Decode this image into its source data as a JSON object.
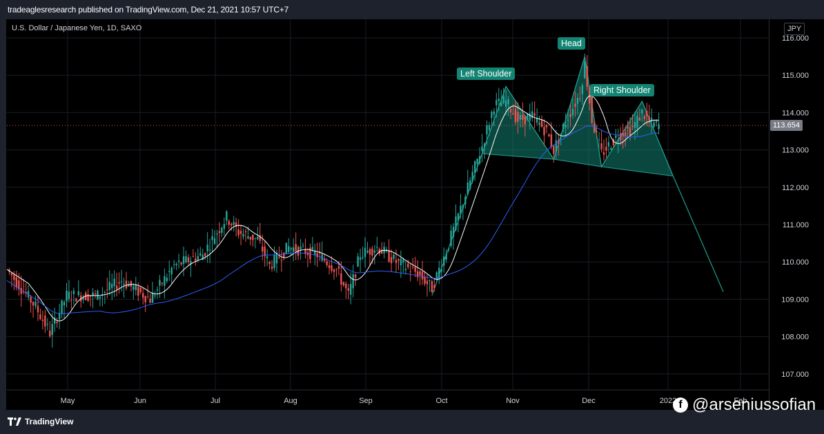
{
  "header": {
    "publisher": "tradeaglesresearch published on TradingView.com, Dec 21, 2021 10:57 UTC+7"
  },
  "symbol": {
    "title": "U.S. Dollar / Japanese Yen, 1D, SAXO",
    "currency": "JPY",
    "last_price": "113.654"
  },
  "pattern_labels": {
    "left_shoulder": "Left Shoulder",
    "head": "Head",
    "right_shoulder": "Right Shoulder"
  },
  "footer": {
    "brand": "TradingView",
    "social_handle": "@arseniussofian"
  },
  "colors": {
    "up": "#26a69a",
    "down": "#ef5350",
    "ma_fast": "#ffffff",
    "ma_slow": "#2962ff",
    "pattern_fill": "#138473",
    "background": "#000000"
  },
  "icons": {
    "social": "facebook-icon",
    "brand": "tradingview-logo-icon"
  },
  "chart_data": {
    "type": "candlestick",
    "title": "U.S. Dollar / Japanese Yen, 1D, SAXO",
    "y_ticks": [
      "107.000",
      "108.000",
      "109.000",
      "110.000",
      "111.000",
      "112.000",
      "113.000",
      "114.000",
      "115.000",
      "116.000"
    ],
    "x_ticks": [
      "May",
      "Jun",
      "Jul",
      "Aug",
      "Sep",
      "Oct",
      "Nov",
      "Dec",
      "2022",
      "Feb"
    ],
    "ylim": [
      106.6,
      116.4
    ],
    "last_price": 113.654,
    "grid": true,
    "pattern": {
      "type": "head_and_shoulders",
      "points": [
        {
          "label": "",
          "date_index": 178,
          "price": 109.1
        },
        {
          "label": "",
          "date_index": 199,
          "price": 112.9
        },
        {
          "label": "Left Shoulder",
          "date_index": 209,
          "price": 114.7
        },
        {
          "label": "",
          "date_index": 229,
          "price": 112.75
        },
        {
          "label": "Head",
          "date_index": 242,
          "price": 115.5
        },
        {
          "label": "",
          "date_index": 249,
          "price": 112.55
        },
        {
          "label": "Right Shoulder",
          "date_index": 266,
          "price": 114.3
        },
        {
          "label": "",
          "date_index": 279,
          "price": 112.3
        },
        {
          "label": "",
          "date_index": 300,
          "price": 109.2
        }
      ]
    },
    "candles_ohlc": []
  }
}
